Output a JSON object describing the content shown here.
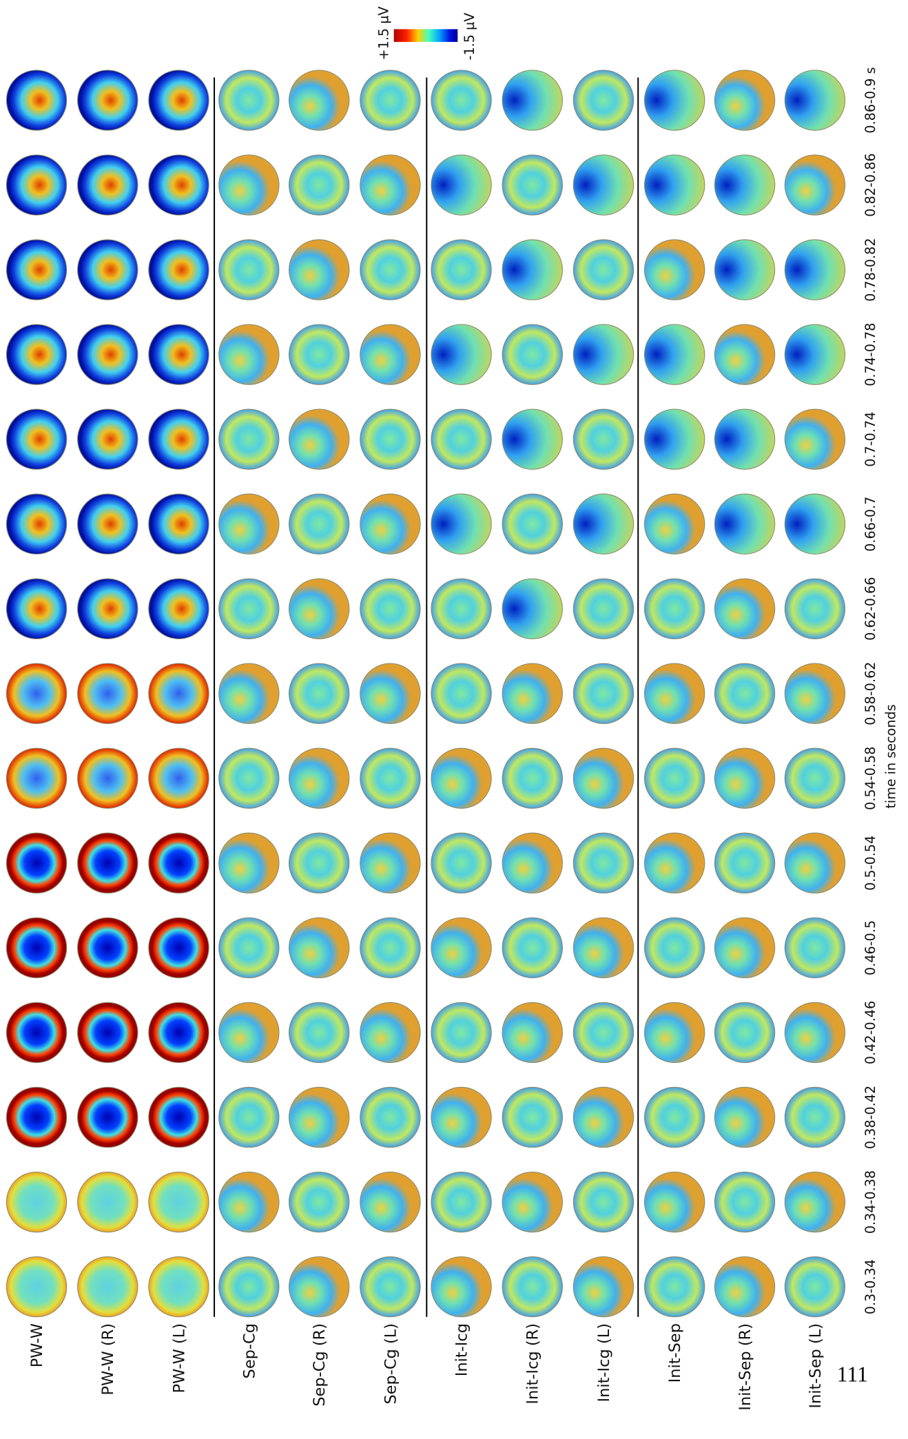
{
  "colorbar": {
    "max_label": "+1.5 µV",
    "min_label": "-1.5 µV"
  },
  "conditions": [
    "PW-W",
    "PW-W (R)",
    "PW-W (L)",
    "Sep-Cg",
    "Sep-Cg (R)",
    "Sep-Cg (L)",
    "Init-Icg",
    "Init-Icg (R)",
    "Init-Icg (L)",
    "Init-Sep",
    "Init-Sep (R)",
    "Init-Sep (L)"
  ],
  "time_windows": [
    "0.3-0.34",
    "0.34-0.38",
    "0.38-0.42",
    "0.42-0.46",
    "0.46-0.5",
    "0.5-0.54",
    "0.54-0.58",
    "0.58-0.62",
    "0.62-0.66",
    "0.66-0.7",
    "0.7-0.74",
    "0.74-0.78",
    "0.78-0.82",
    "0.82-0.86",
    "0.86-0.9 s"
  ],
  "axis_label": "time in seconds",
  "page_number": "111"
}
